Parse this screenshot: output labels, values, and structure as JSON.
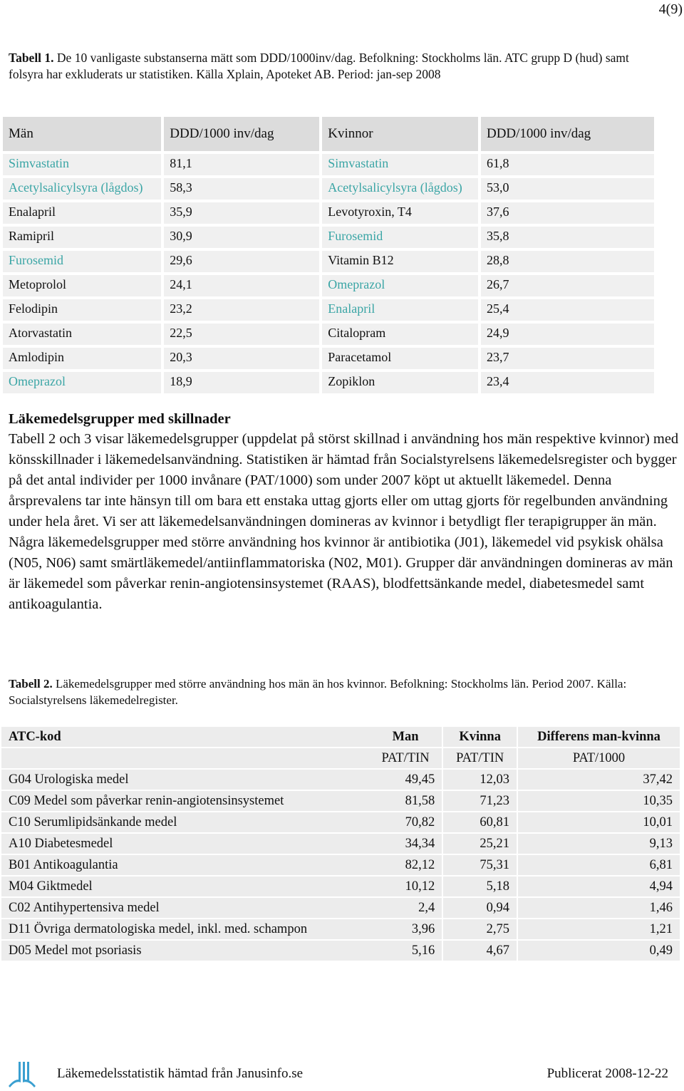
{
  "page_number": "4(9)",
  "table1": {
    "caption_label": "Tabell 1.",
    "caption": "De 10 vanligaste substanserna mätt som DDD/1000inv/dag. Befolkning: Stockholms län. ATC grupp D (hud) samt folsyra har exkluderats ur statistiken. Källa Xplain, Apoteket AB. Period: jan-sep 2008",
    "headers": [
      "Män",
      "DDD/1000 inv/dag",
      "Kvinnor",
      "DDD/1000 inv/dag"
    ],
    "highlight_color": "#3aa5a5",
    "highlighted_cells": [
      [
        0,
        0
      ],
      [
        0,
        2
      ],
      [
        1,
        0
      ],
      [
        1,
        2
      ],
      [
        3,
        2
      ],
      [
        4,
        0
      ],
      [
        5,
        2
      ],
      [
        6,
        2
      ],
      [
        9,
        0
      ]
    ],
    "rows": [
      [
        "Simvastatin",
        "81,1",
        "Simvastatin",
        "61,8"
      ],
      [
        "Acetylsalicylsyra (lågdos)",
        "58,3",
        "Acetylsalicylsyra (lågdos)",
        "53,0"
      ],
      [
        "Enalapril",
        "35,9",
        "Levotyroxin, T4",
        "37,6"
      ],
      [
        "Ramipril",
        "30,9",
        "Furosemid",
        "35,8"
      ],
      [
        "Furosemid",
        "29,6",
        "Vitamin B12",
        "28,8"
      ],
      [
        "Metoprolol",
        "24,1",
        "Omeprazol",
        "26,7"
      ],
      [
        "Felodipin",
        "23,2",
        "Enalapril",
        "25,4"
      ],
      [
        "Atorvastatin",
        "22,5",
        "Citalopram",
        "24,9"
      ],
      [
        "Amlodipin",
        "20,3",
        "Paracetamol",
        "23,7"
      ],
      [
        "Omeprazol",
        "18,9",
        "Zopiklon",
        "23,4"
      ]
    ]
  },
  "section": {
    "heading": "Läkemedelsgrupper med skillnader",
    "text": "Tabell 2 och 3 visar läkemedelsgrupper (uppdelat på störst skillnad i användning hos män respektive kvinnor) med könsskillnader i läkemedelsanvändning. Statistiken är hämtad från Socialstyrelsens läkemedelsregister och bygger på det antal individer per 1000 invånare (PAT/1000) som under 2007 köpt ut aktuellt läkemedel. Denna årsprevalens tar inte hänsyn till om bara ett enstaka uttag gjorts eller om uttag gjorts för regelbunden användning under hela året. Vi ser att läkemedelsanvändningen domineras av kvinnor i betydligt fler terapigrupper än män. Några läkemedelsgrupper med större användning hos kvinnor är antibiotika (J01), läkemedel vid psykisk ohälsa (N05, N06) samt smärtläkemedel/antiinflammatoriska (N02, M01). Grupper där användningen domineras av män är läkemedel som påverkar renin-angiotensinsystemet (RAAS), blodfettsänkande medel, diabetesmedel samt antikoagulantia."
  },
  "table2": {
    "caption_label": "Tabell 2.",
    "caption": "Läkemedelsgrupper med större användning hos män än hos kvinnor. Befolkning: Stockholms län. Period 2007. Källa: Socialstyrelsens läkemedelregister.",
    "headers": [
      "ATC-kod",
      "Man",
      "Kvinna",
      "Differens man-kvinna"
    ],
    "units": [
      "PAT/TIN",
      "PAT/TIN",
      "PAT/1000"
    ],
    "rows": [
      [
        "G04 Urologiska medel",
        "49,45",
        "12,03",
        "37,42"
      ],
      [
        "C09 Medel som påverkar renin-angiotensinsystemet",
        "81,58",
        "71,23",
        "10,35"
      ],
      [
        "C10 Serumlipidsänkande medel",
        "70,82",
        "60,81",
        "10,01"
      ],
      [
        "A10 Diabetesmedel",
        "34,34",
        "25,21",
        "9,13"
      ],
      [
        "B01 Antikoagulantia",
        "82,12",
        "75,31",
        "6,81"
      ],
      [
        "M04 Giktmedel",
        "10,12",
        "5,18",
        "4,94"
      ],
      [
        "C02 Antihypertensiva medel",
        "2,4",
        "0,94",
        "1,46"
      ],
      [
        "D11 Övriga dermatologiska medel, inkl. med. schampon",
        "3,96",
        "2,75",
        "1,21"
      ],
      [
        "D05 Medel mot psoriasis",
        "5,16",
        "4,67",
        "0,49"
      ]
    ]
  },
  "footer": {
    "left": "Läkemedelsstatistik hämtad från Janusinfo.se",
    "right": "Publicerat 2008-12-22"
  }
}
